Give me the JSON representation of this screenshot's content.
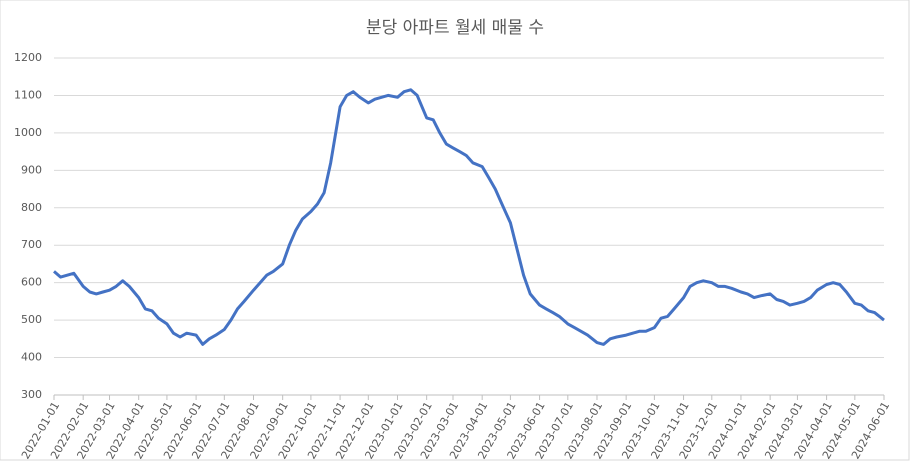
{
  "chart_data": {
    "type": "line",
    "title": "분당 아파트 월세 매물 수",
    "x": [
      "2022-01-01",
      "2022-01-08",
      "2022-01-15",
      "2022-01-22",
      "2022-02-01",
      "2022-02-08",
      "2022-02-15",
      "2022-02-22",
      "2022-03-01",
      "2022-03-08",
      "2022-03-15",
      "2022-03-22",
      "2022-04-01",
      "2022-04-08",
      "2022-04-15",
      "2022-04-22",
      "2022-05-01",
      "2022-05-08",
      "2022-05-15",
      "2022-05-22",
      "2022-06-01",
      "2022-06-08",
      "2022-06-15",
      "2022-06-22",
      "2022-07-01",
      "2022-07-08",
      "2022-07-15",
      "2022-07-22",
      "2022-08-01",
      "2022-08-08",
      "2022-08-15",
      "2022-08-22",
      "2022-09-01",
      "2022-09-08",
      "2022-09-15",
      "2022-09-22",
      "2022-10-01",
      "2022-10-08",
      "2022-10-15",
      "2022-10-22",
      "2022-11-01",
      "2022-11-08",
      "2022-11-15",
      "2022-11-22",
      "2022-12-01",
      "2022-12-08",
      "2022-12-15",
      "2022-12-22",
      "2023-01-01",
      "2023-01-08",
      "2023-01-15",
      "2023-01-22",
      "2023-02-01",
      "2023-02-08",
      "2023-02-15",
      "2023-02-22",
      "2023-03-01",
      "2023-03-08",
      "2023-03-15",
      "2023-03-22",
      "2023-04-01",
      "2023-04-08",
      "2023-04-15",
      "2023-04-22",
      "2023-05-01",
      "2023-05-08",
      "2023-05-15",
      "2023-05-22",
      "2023-06-01",
      "2023-06-08",
      "2023-06-15",
      "2023-06-22",
      "2023-07-01",
      "2023-07-08",
      "2023-07-15",
      "2023-07-22",
      "2023-08-01",
      "2023-08-08",
      "2023-08-15",
      "2023-08-22",
      "2023-09-01",
      "2023-09-08",
      "2023-09-15",
      "2023-09-22",
      "2023-10-01",
      "2023-10-08",
      "2023-10-15",
      "2023-10-22",
      "2023-11-01",
      "2023-11-08",
      "2023-11-15",
      "2023-11-22",
      "2023-12-01",
      "2023-12-08",
      "2023-12-15",
      "2023-12-22",
      "2024-01-01",
      "2024-01-08",
      "2024-01-15",
      "2024-01-22",
      "2024-02-01",
      "2024-02-08",
      "2024-02-15",
      "2024-02-22",
      "2024-03-01",
      "2024-03-08",
      "2024-03-15",
      "2024-03-22",
      "2024-04-01",
      "2024-04-08",
      "2024-04-15",
      "2024-04-22",
      "2024-05-01",
      "2024-05-08",
      "2024-05-15",
      "2024-05-22",
      "2024-06-01"
    ],
    "series": [
      {
        "name": "매물 수",
        "color": "#4472c4",
        "values": [
          630,
          615,
          620,
          625,
          590,
          575,
          570,
          575,
          580,
          590,
          605,
          590,
          560,
          530,
          525,
          505,
          490,
          465,
          455,
          465,
          460,
          435,
          450,
          460,
          475,
          500,
          530,
          550,
          580,
          600,
          620,
          630,
          650,
          700,
          740,
          770,
          790,
          810,
          840,
          920,
          1070,
          1100,
          1110,
          1095,
          1080,
          1090,
          1095,
          1100,
          1095,
          1110,
          1115,
          1100,
          1040,
          1035,
          1000,
          970,
          960,
          950,
          940,
          920,
          910,
          880,
          850,
          810,
          760,
          690,
          620,
          570,
          540,
          530,
          520,
          510,
          490,
          480,
          470,
          460,
          440,
          435,
          450,
          455,
          460,
          465,
          470,
          470,
          480,
          505,
          510,
          530,
          560,
          590,
          600,
          605,
          600,
          590,
          590,
          585,
          575,
          570,
          560,
          565,
          570,
          555,
          550,
          540,
          545,
          550,
          560,
          580,
          595,
          600,
          595,
          575,
          545,
          540,
          525,
          520,
          500
        ]
      }
    ],
    "xlim": [
      "2022-01-01",
      "2024-06-01"
    ],
    "xticks": [
      "2022-01-01",
      "2022-02-01",
      "2022-03-01",
      "2022-04-01",
      "2022-05-01",
      "2022-06-01",
      "2022-07-01",
      "2022-08-01",
      "2022-09-01",
      "2022-10-01",
      "2022-11-01",
      "2022-12-01",
      "2023-01-01",
      "2023-02-01",
      "2023-03-01",
      "2023-04-01",
      "2023-05-01",
      "2023-06-01",
      "2023-07-01",
      "2023-08-01",
      "2023-09-01",
      "2023-10-01",
      "2023-11-01",
      "2023-12-01",
      "2024-01-01",
      "2024-02-01",
      "2024-03-01",
      "2024-04-01",
      "2024-05-01",
      "2024-06-01"
    ],
    "ylim": [
      300,
      1200
    ],
    "yticks": [
      300,
      400,
      500,
      600,
      700,
      800,
      900,
      1000,
      1100,
      1200
    ],
    "grid": true
  }
}
